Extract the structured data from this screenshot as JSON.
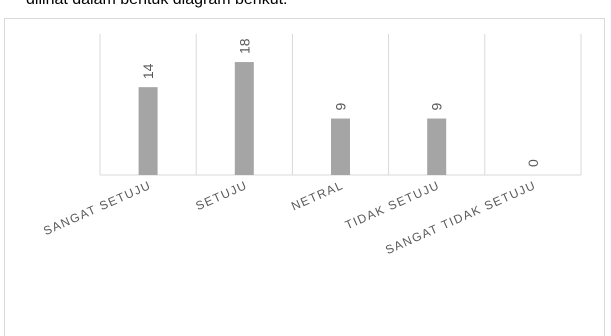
{
  "intro_text": "dilihat dalam bentuk diagram berikut:",
  "chart_data": {
    "type": "bar",
    "categories": [
      "SANGAT SETUJU",
      "SETUJU",
      "NETRAL",
      "TIDAK SETUJU",
      "SANGAT TIDAK SETUJU"
    ],
    "values": [
      14,
      18,
      9,
      9,
      0
    ],
    "ylim": [
      0,
      20
    ],
    "grid": "vertical category dividers",
    "colors": {
      "bar": "#a5a5a5",
      "label": "#595959",
      "grid": "#d9d9d9",
      "axis": "#d9d9d9"
    }
  }
}
